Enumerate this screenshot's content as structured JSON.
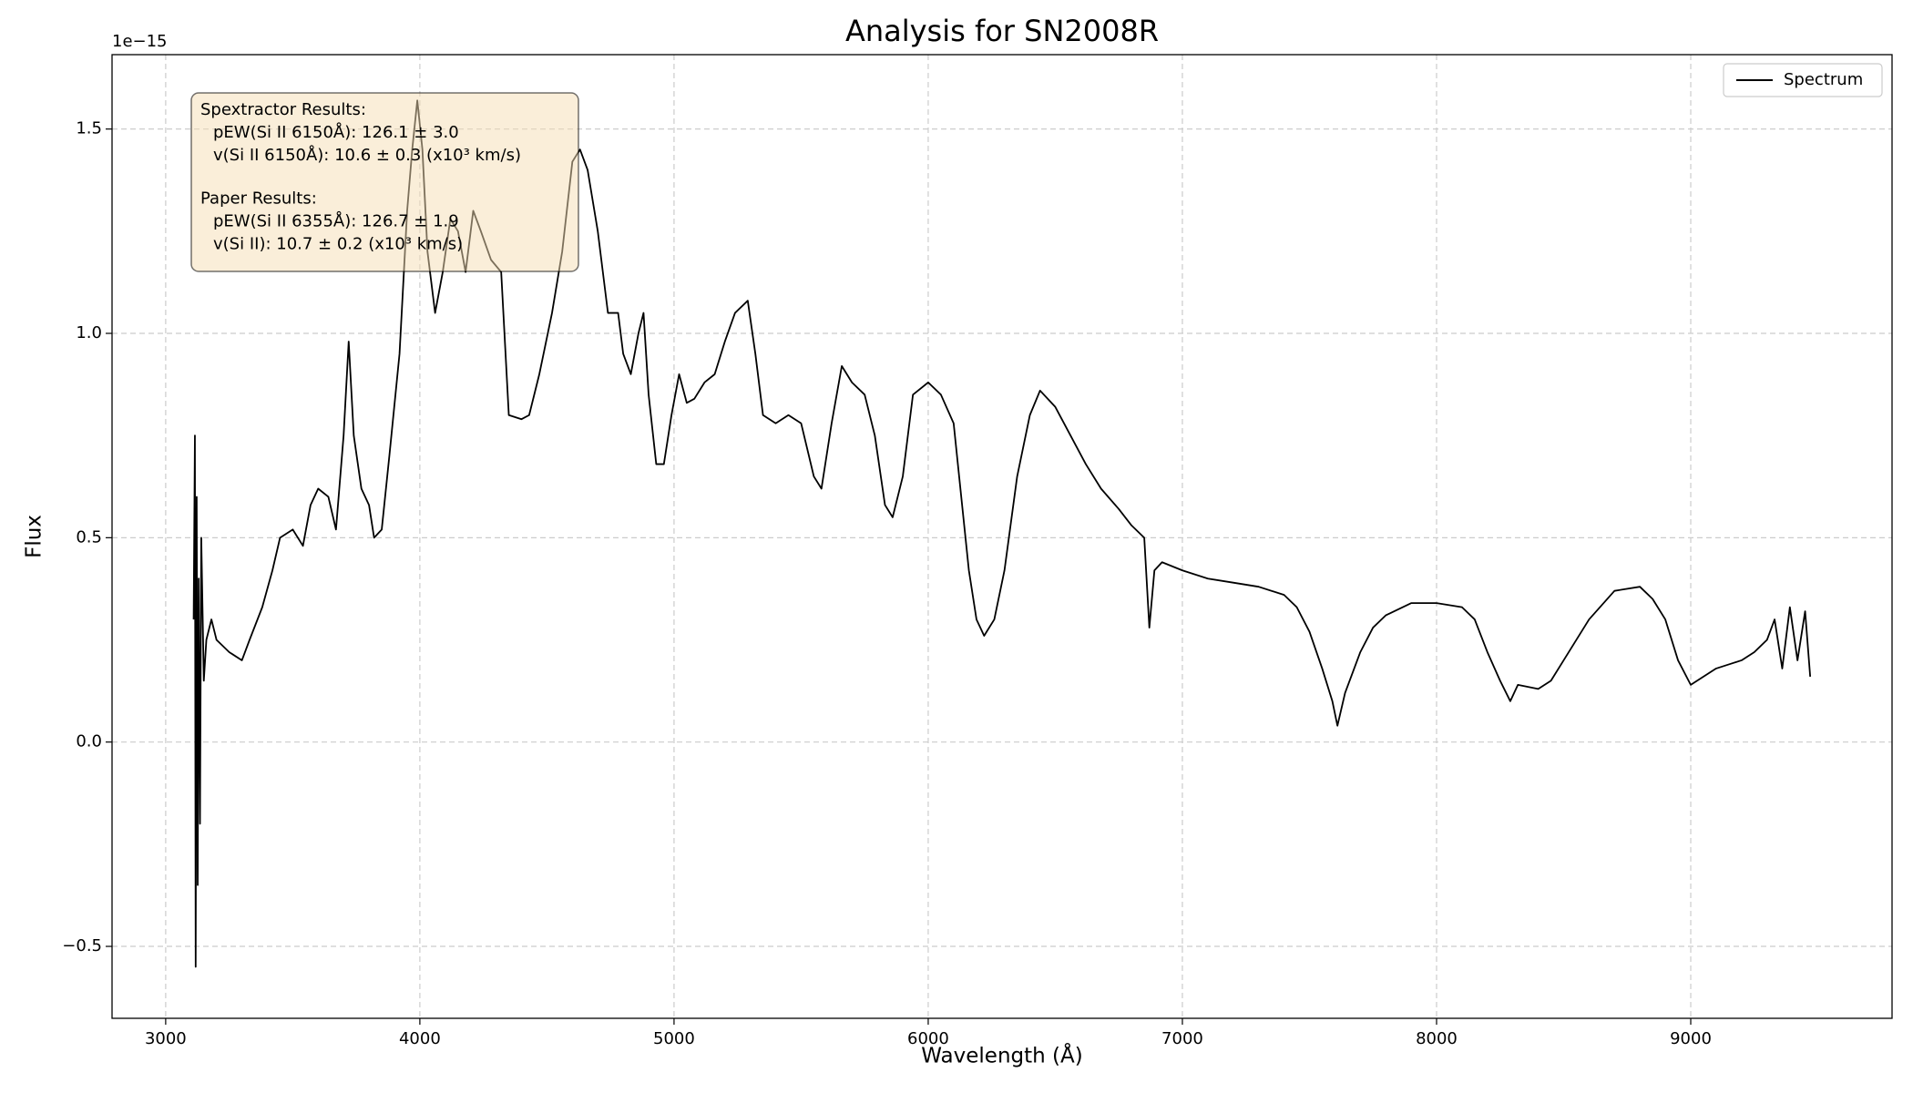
{
  "chart_data": {
    "type": "line",
    "title": "Analysis for SN2008R",
    "x_label": "Wavelength (Å)",
    "y_label": "Flux",
    "y_offset_label": "1e−15",
    "x": [
      3110,
      3115,
      3118,
      3122,
      3126,
      3130,
      3135,
      3140,
      3150,
      3160,
      3180,
      3200,
      3250,
      3300,
      3330,
      3380,
      3420,
      3450,
      3500,
      3540,
      3570,
      3600,
      3640,
      3670,
      3700,
      3720,
      3740,
      3770,
      3800,
      3820,
      3850,
      3880,
      3920,
      3950,
      3970,
      3990,
      4010,
      4030,
      4060,
      4090,
      4120,
      4150,
      4180,
      4210,
      4240,
      4280,
      4320,
      4350,
      4400,
      4430,
      4470,
      4520,
      4560,
      4600,
      4630,
      4660,
      4700,
      4740,
      4780,
      4800,
      4830,
      4860,
      4880,
      4900,
      4930,
      4960,
      4990,
      5020,
      5050,
      5080,
      5120,
      5160,
      5200,
      5240,
      5290,
      5320,
      5350,
      5400,
      5450,
      5500,
      5550,
      5580,
      5620,
      5660,
      5700,
      5750,
      5790,
      5830,
      5860,
      5900,
      5940,
      6000,
      6050,
      6100,
      6130,
      6160,
      6190,
      6220,
      6260,
      6300,
      6350,
      6400,
      6440,
      6500,
      6560,
      6620,
      6680,
      6750,
      6800,
      6850,
      6870,
      6890,
      6920,
      7000,
      7100,
      7200,
      7300,
      7400,
      7450,
      7500,
      7550,
      7590,
      7610,
      7640,
      7700,
      7750,
      7800,
      7900,
      8000,
      8100,
      8150,
      8200,
      8250,
      8290,
      8320,
      8400,
      8450,
      8500,
      8600,
      8700,
      8800,
      8850,
      8900,
      8950,
      9000,
      9050,
      9100,
      9150,
      9200,
      9250,
      9300,
      9330,
      9360,
      9390,
      9420,
      9450,
      9470
    ],
    "series": [
      {
        "name": "Spectrum",
        "color": "#000000",
        "values": [
          0.3,
          0.75,
          -0.55,
          0.6,
          -0.35,
          0.4,
          -0.2,
          0.5,
          0.15,
          0.25,
          0.3,
          0.25,
          0.22,
          0.2,
          0.25,
          0.33,
          0.42,
          0.5,
          0.52,
          0.48,
          0.58,
          0.62,
          0.6,
          0.52,
          0.75,
          0.98,
          0.75,
          0.62,
          0.58,
          0.5,
          0.52,
          0.7,
          0.95,
          1.3,
          1.45,
          1.57,
          1.45,
          1.2,
          1.05,
          1.15,
          1.28,
          1.25,
          1.15,
          1.3,
          1.25,
          1.18,
          1.15,
          0.8,
          0.79,
          0.8,
          0.9,
          1.05,
          1.2,
          1.42,
          1.45,
          1.4,
          1.25,
          1.05,
          1.05,
          0.95,
          0.9,
          1.0,
          1.05,
          0.85,
          0.68,
          0.68,
          0.8,
          0.9,
          0.83,
          0.84,
          0.88,
          0.9,
          0.98,
          1.05,
          1.08,
          0.95,
          0.8,
          0.78,
          0.8,
          0.78,
          0.65,
          0.62,
          0.78,
          0.92,
          0.88,
          0.85,
          0.75,
          0.58,
          0.55,
          0.65,
          0.85,
          0.88,
          0.85,
          0.78,
          0.6,
          0.42,
          0.3,
          0.26,
          0.3,
          0.42,
          0.65,
          0.8,
          0.86,
          0.82,
          0.75,
          0.68,
          0.62,
          0.57,
          0.53,
          0.5,
          0.28,
          0.42,
          0.44,
          0.42,
          0.4,
          0.39,
          0.38,
          0.36,
          0.33,
          0.27,
          0.18,
          0.1,
          0.04,
          0.12,
          0.22,
          0.28,
          0.31,
          0.34,
          0.34,
          0.33,
          0.3,
          0.22,
          0.15,
          0.1,
          0.14,
          0.13,
          0.15,
          0.2,
          0.3,
          0.37,
          0.38,
          0.35,
          0.3,
          0.2,
          0.14,
          0.16,
          0.18,
          0.19,
          0.2,
          0.22,
          0.25,
          0.3,
          0.18,
          0.33,
          0.2,
          0.32,
          0.16
        ]
      }
    ],
    "xlim": [
      2789,
      9792
    ],
    "ylim": [
      -0.676,
      1.682
    ],
    "xticks": [
      3000,
      4000,
      5000,
      6000,
      7000,
      8000,
      9000
    ],
    "yticks": [
      {
        "value": -0.5,
        "label": "−0.5"
      },
      {
        "value": 0,
        "label": "0.0"
      },
      0.5,
      {
        "value": 1,
        "label": "1.0"
      },
      1.5
    ],
    "grid": true,
    "legend": "upper right",
    "annotation": [
      {
        "heading": "Spextractor Results:",
        "lines": [
          "pEW(Si II 6150Å): 126.1 ± 3.0",
          "v(Si II 6150Å): 10.6 ± 0.3 (x10³ km/s)"
        ]
      },
      {
        "heading": "Paper Results:",
        "lines": [
          "pEW(Si II 6355Å): 126.7 ± 1.9",
          "v(Si II): 10.7 ± 0.2 (x10³ km/s)"
        ]
      }
    ]
  }
}
